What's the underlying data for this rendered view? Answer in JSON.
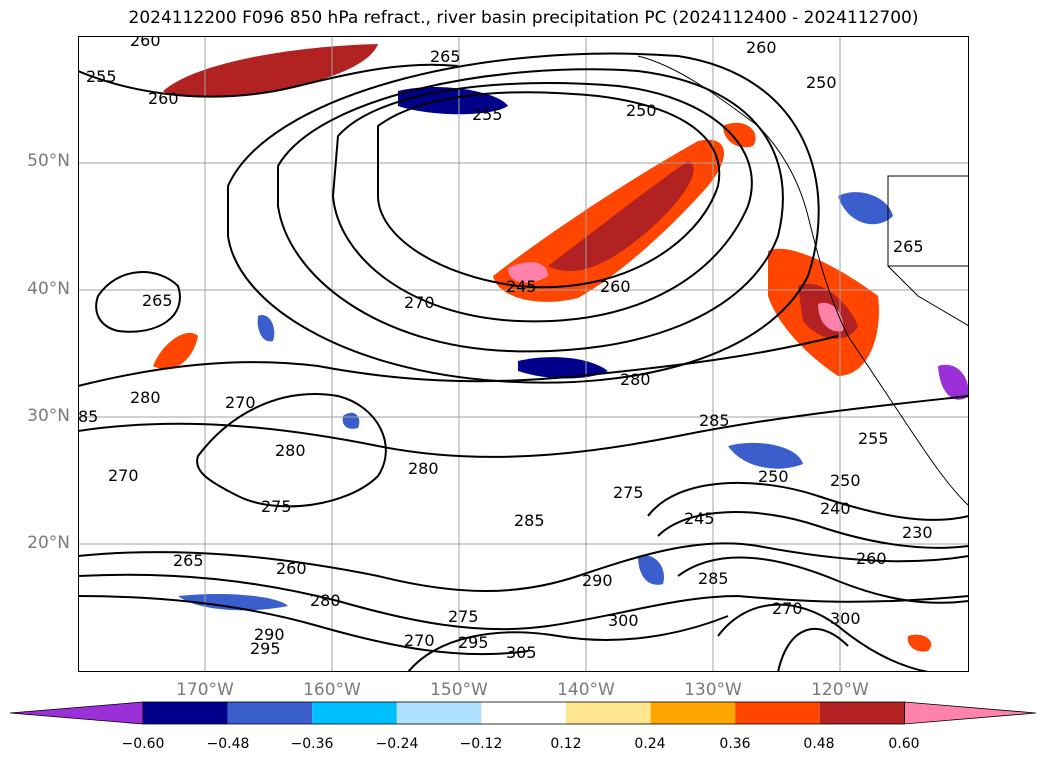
{
  "title": "2024112200 F096 850 hPa refract., river basin precipitation PC (2024112400 - 2024112700)",
  "axes": {
    "lat_labels": [
      "50°N",
      "40°N",
      "30°N",
      "20°N"
    ],
    "lon_labels": [
      "170°W",
      "160°W",
      "150°W",
      "140°W",
      "130°W",
      "120°W"
    ]
  },
  "contour_labels": [
    "260",
    "255",
    "260",
    "265",
    "250",
    "250",
    "255",
    "260",
    "245",
    "265",
    "270",
    "260",
    "265",
    "280",
    "270",
    "280",
    "280",
    "285",
    "250",
    "255",
    "275",
    "280",
    "275",
    "270",
    "265",
    "260",
    "280",
    "285",
    "245",
    "250",
    "240",
    "230",
    "290",
    "285",
    "270",
    "260",
    "300",
    "300",
    "305",
    "295",
    "295",
    "290",
    "275",
    "270",
    "85"
  ],
  "colorbar": {
    "ticks": [
      "−0.60",
      "−0.48",
      "−0.36",
      "−0.24",
      "−0.12",
      "0.12",
      "0.24",
      "0.36",
      "0.48",
      "0.60"
    ],
    "colors": [
      "#9b30d9",
      "#00008b",
      "#3a5fcd",
      "#00bfff",
      "#b0e2ff",
      "#ffffff",
      "#ffe68f",
      "#ffa500",
      "#ff4500",
      "#b22222",
      "#ff82ab"
    ]
  }
}
